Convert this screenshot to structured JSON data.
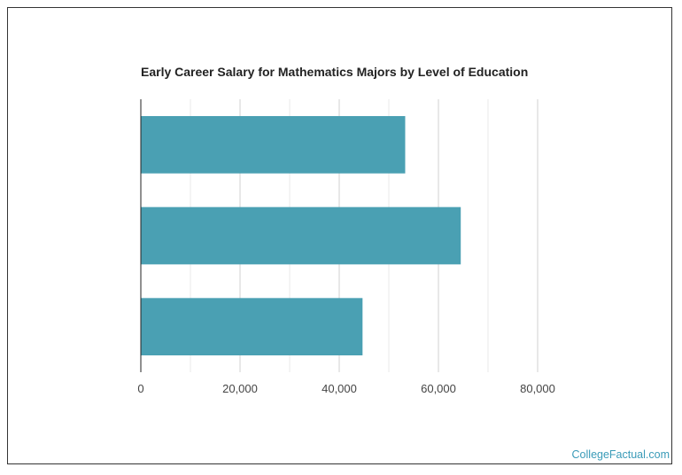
{
  "chart_data": {
    "type": "bar",
    "orientation": "horizontal",
    "title": "Early Career Salary for Mathematics Majors by Level of Education",
    "categories": [
      "",
      "",
      ""
    ],
    "values": [
      53300,
      64500,
      44700
    ],
    "xlim": [
      0,
      80000
    ],
    "x_ticks": [
      "0",
      "20,000",
      "40,000",
      "60,000",
      "80,000"
    ],
    "x_tick_values": [
      0,
      20000,
      40000,
      60000,
      80000
    ],
    "grid": true,
    "bar_color": "#4aa0b3"
  },
  "credit": "CollegeFactual.com",
  "colors": {
    "bar": "#4aa0b3",
    "credit": "#3a9bb8",
    "grid": "#d0d0d0",
    "axis": "#222222"
  }
}
